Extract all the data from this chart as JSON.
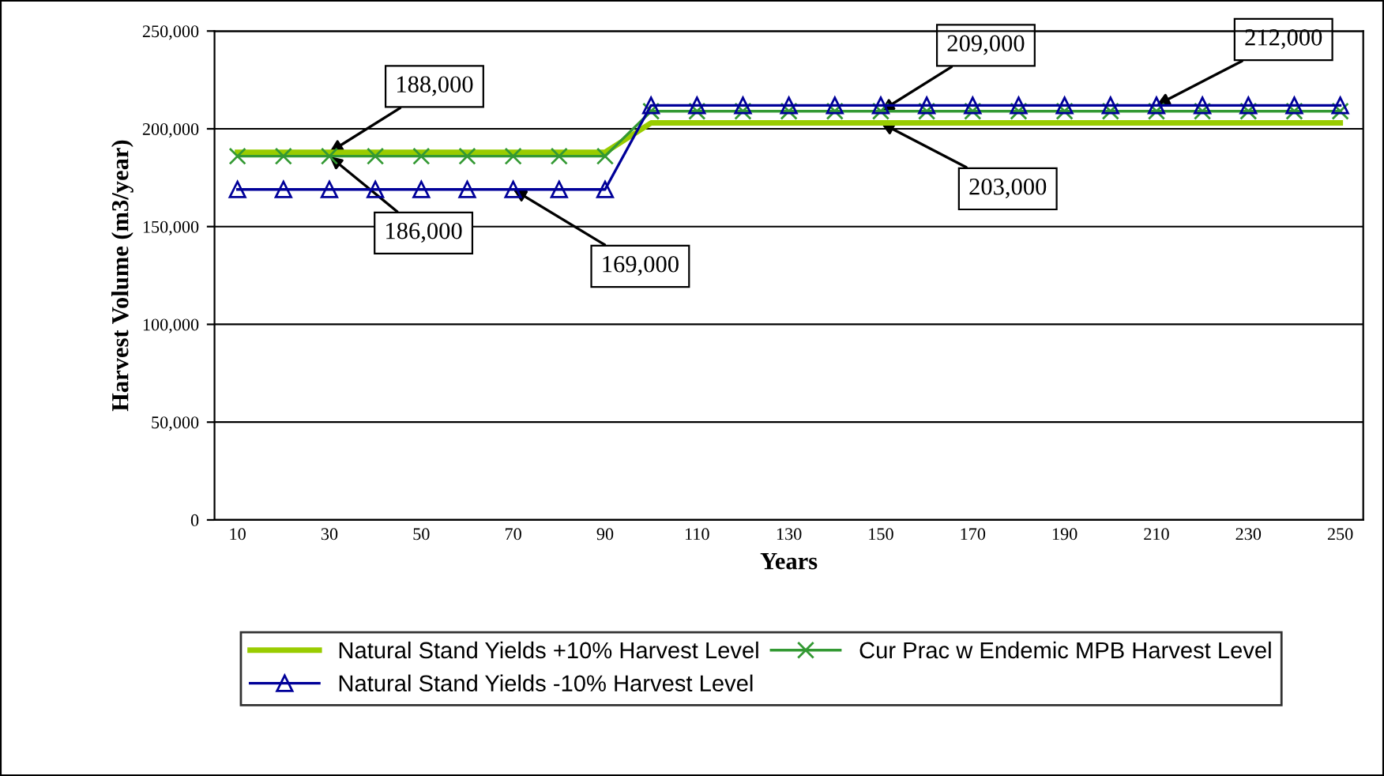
{
  "chart_data": {
    "type": "line",
    "xlabel": "Years",
    "ylabel": "Harvest Volume (m3/year)",
    "categories": [
      "10",
      null,
      "30",
      null,
      "50",
      null,
      "70",
      null,
      "90",
      null,
      "110",
      null,
      "130",
      null,
      "150",
      null,
      "170",
      null,
      "190",
      null,
      "210",
      null,
      "230",
      null,
      "250"
    ],
    "series": [
      {
        "name": "Natural Stand Yields +10% Harvest Level",
        "color": "#99cc00",
        "marker": "none",
        "values": [
          188000,
          188000,
          188000,
          188000,
          188000,
          188000,
          188000,
          188000,
          188000,
          203000,
          203000,
          203000,
          203000,
          203000,
          203000,
          203000,
          203000,
          203000,
          203000,
          203000,
          203000,
          203000,
          203000,
          203000,
          203000
        ]
      },
      {
        "name": "Cur Prac w Endemic MPB Harvest Level",
        "color": "#339933",
        "marker": "cross",
        "values": [
          186000,
          186000,
          186000,
          186000,
          186000,
          186000,
          186000,
          186000,
          186000,
          209000,
          209000,
          209000,
          209000,
          209000,
          209000,
          209000,
          209000,
          209000,
          209000,
          209000,
          209000,
          209000,
          209000,
          209000,
          209000
        ]
      },
      {
        "name": "Natural Stand Yields -10% Harvest Level",
        "color": "#000099",
        "marker": "triangle",
        "values": [
          169000,
          169000,
          169000,
          169000,
          169000,
          169000,
          169000,
          169000,
          169000,
          212000,
          212000,
          212000,
          212000,
          212000,
          212000,
          212000,
          212000,
          212000,
          212000,
          212000,
          212000,
          212000,
          212000,
          212000,
          212000
        ]
      }
    ],
    "ylim": [
      0,
      250000
    ],
    "yticks": [
      {
        "value": 0,
        "label": "0"
      },
      {
        "value": 50000,
        "label": "50,000"
      },
      {
        "value": 100000,
        "label": "100,000"
      },
      {
        "value": 150000,
        "label": "150,000"
      },
      {
        "value": 200000,
        "label": "200,000"
      },
      {
        "value": 250000,
        "label": "250,000"
      }
    ],
    "grid": "y",
    "legend": "bottom",
    "annotations": [
      {
        "text": "188,000",
        "x": "30",
        "y": 188000
      },
      {
        "text": "186,000",
        "x": "30",
        "y": 186000
      },
      {
        "text": "169,000",
        "x": "70",
        "y": 169000
      },
      {
        "text": "209,000",
        "x": "150",
        "y": 209000
      },
      {
        "text": "203,000",
        "x": "150",
        "y": 203000
      },
      {
        "text": "212,000",
        "x": "210",
        "y": 212000
      }
    ]
  }
}
